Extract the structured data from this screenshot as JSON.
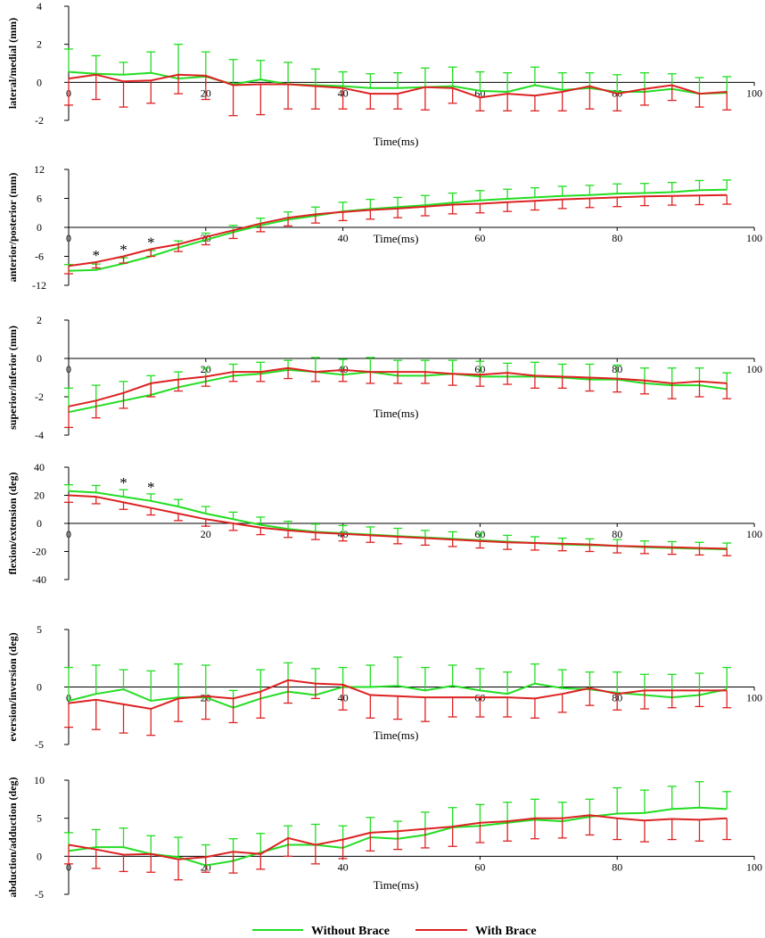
{
  "colors": {
    "without_brace": "#22dd22",
    "with_brace": "#dd2222",
    "axis": "#000000"
  },
  "legend": {
    "without": "Without Brace",
    "with": "With Brace"
  },
  "chart_data": [
    {
      "type": "line",
      "ylabel": "lateral/medial (mm)",
      "xlabel": "Time(ms)",
      "xlim": [
        0,
        100
      ],
      "ylim": [
        -2,
        4
      ],
      "xticks": [
        "0",
        "20",
        "40",
        "60",
        "80",
        "100"
      ],
      "yticks": [
        "4",
        "2",
        "0",
        "-2"
      ],
      "ytick_values": [
        4,
        2,
        0,
        -2
      ],
      "x": [
        0,
        4,
        8,
        12,
        16,
        20,
        24,
        28,
        32,
        36,
        40,
        44,
        48,
        52,
        56,
        60,
        64,
        68,
        72,
        76,
        80,
        84,
        88,
        92,
        96
      ],
      "series": [
        {
          "name": "Without Brace",
          "values": [
            0.55,
            0.45,
            0.4,
            0.5,
            0.2,
            0.3,
            -0.1,
            0.15,
            -0.1,
            -0.15,
            -0.2,
            -0.3,
            -0.3,
            -0.25,
            -0.2,
            -0.45,
            -0.5,
            -0.15,
            -0.4,
            -0.3,
            -0.5,
            -0.5,
            -0.35,
            -0.6,
            -0.55
          ],
          "err": [
            1.2,
            0.95,
            0.65,
            1.1,
            1.8,
            1.3,
            1.3,
            1.0,
            1.15,
            0.85,
            0.75,
            0.75,
            0.8,
            1.0,
            1.0,
            1.0,
            1.0,
            0.95,
            0.9,
            0.8,
            0.9,
            1.0,
            0.8,
            0.85,
            0.85
          ]
        },
        {
          "name": "With Brace",
          "values": [
            0.2,
            0.4,
            0.05,
            0.1,
            0.4,
            0.35,
            -0.15,
            -0.1,
            -0.1,
            -0.2,
            -0.3,
            -0.6,
            -0.6,
            -0.25,
            -0.3,
            -0.8,
            -0.6,
            -0.7,
            -0.5,
            -0.2,
            -0.6,
            -0.35,
            -0.15,
            -0.6,
            -0.5
          ],
          "err": [
            1.4,
            1.3,
            1.35,
            1.2,
            1.0,
            1.25,
            1.6,
            1.6,
            1.3,
            1.2,
            1.1,
            0.8,
            0.8,
            1.2,
            0.8,
            0.7,
            0.9,
            0.8,
            1.0,
            1.2,
            0.9,
            0.85,
            0.8,
            0.7,
            0.95
          ]
        }
      ],
      "stars_x": []
    },
    {
      "type": "line",
      "ylabel": "anterior/posterior (mm)",
      "xlabel": "Time(ms)",
      "xlim": [
        0,
        100
      ],
      "ylim": [
        -12,
        12
      ],
      "xticks": [
        "0",
        "20",
        "40",
        "60",
        "80",
        "100"
      ],
      "yticks": [
        "12",
        "6",
        "0",
        "-6",
        "-12"
      ],
      "ytick_values": [
        12,
        6,
        0,
        -6,
        -12
      ],
      "x": [
        0,
        4,
        8,
        12,
        16,
        20,
        24,
        28,
        32,
        36,
        40,
        44,
        48,
        52,
        56,
        60,
        64,
        68,
        72,
        76,
        80,
        84,
        88,
        92,
        96
      ],
      "series": [
        {
          "name": "Without Brace",
          "values": [
            -9,
            -8.8,
            -7.5,
            -6,
            -4.2,
            -2.6,
            -1,
            0.4,
            1.6,
            2.4,
            3.3,
            3.8,
            4.2,
            4.6,
            5.1,
            5.6,
            5.9,
            6.2,
            6.5,
            6.7,
            7,
            7.1,
            7.3,
            7.7,
            7.8
          ],
          "err": [
            1.3,
            1.2,
            1.2,
            1.2,
            1.4,
            1.4,
            1.4,
            1.5,
            1.6,
            1.8,
            1.9,
            2.0,
            2.0,
            2.0,
            2.0,
            2.0,
            2.0,
            2.0,
            2.0,
            2.0,
            2.0,
            2.0,
            2.0,
            2.0,
            2.0
          ]
        },
        {
          "name": "With Brace",
          "values": [
            -8,
            -7.2,
            -6,
            -4.5,
            -3.5,
            -2,
            -0.6,
            0.8,
            2,
            2.7,
            3.2,
            3.6,
            3.9,
            4.3,
            4.7,
            4.9,
            5.2,
            5.5,
            5.8,
            6,
            6.2,
            6.4,
            6.5,
            6.6,
            6.7
          ],
          "err": [
            1.6,
            1.2,
            1.4,
            1.5,
            1.5,
            1.6,
            1.7,
            1.7,
            1.7,
            1.8,
            1.8,
            1.9,
            1.9,
            1.9,
            1.9,
            1.9,
            1.9,
            1.9,
            1.9,
            1.9,
            1.9,
            1.9,
            1.9,
            1.9,
            1.9
          ]
        }
      ],
      "stars_x": [
        4,
        8,
        12
      ]
    },
    {
      "type": "line",
      "ylabel": "superior/inferior (mm)",
      "xlabel": "Time(ms)",
      "xlim": [
        0,
        100
      ],
      "ylim": [
        -4,
        2
      ],
      "xticks": [
        "0",
        "20",
        "40",
        "60",
        "80",
        "100"
      ],
      "yticks": [
        "2",
        "0",
        "-2",
        "-4"
      ],
      "ytick_values": [
        2,
        0,
        -2,
        -4
      ],
      "x": [
        0,
        4,
        8,
        12,
        16,
        20,
        24,
        28,
        32,
        36,
        40,
        44,
        48,
        52,
        56,
        60,
        64,
        68,
        72,
        76,
        80,
        84,
        88,
        92,
        96
      ],
      "series": [
        {
          "name": "Without Brace",
          "values": [
            -2.8,
            -2.5,
            -2.2,
            -1.9,
            -1.5,
            -1.2,
            -0.9,
            -0.8,
            -0.6,
            -0.7,
            -0.85,
            -0.7,
            -0.9,
            -0.9,
            -0.8,
            -0.95,
            -0.95,
            -0.95,
            -1.0,
            -1.1,
            -1.1,
            -1.3,
            -1.4,
            -1.4,
            -1.6
          ],
          "err": [
            1.25,
            1.1,
            1.0,
            1.0,
            0.8,
            0.7,
            0.6,
            0.6,
            0.5,
            0.75,
            0.8,
            0.75,
            0.8,
            0.8,
            0.7,
            0.8,
            0.7,
            0.75,
            0.7,
            0.8,
            0.75,
            0.8,
            0.9,
            0.9,
            0.85
          ]
        },
        {
          "name": "With Brace",
          "values": [
            -2.5,
            -2.2,
            -1.8,
            -1.3,
            -1.1,
            -0.95,
            -0.7,
            -0.7,
            -0.5,
            -0.7,
            -0.6,
            -0.7,
            -0.7,
            -0.7,
            -0.8,
            -0.85,
            -0.75,
            -0.9,
            -0.95,
            -1.0,
            -1.05,
            -1.15,
            -1.3,
            -1.2,
            -1.3
          ],
          "err": [
            1.1,
            0.9,
            0.8,
            0.7,
            0.6,
            0.5,
            0.5,
            0.5,
            0.55,
            0.5,
            0.6,
            0.6,
            0.6,
            0.6,
            0.6,
            0.6,
            0.6,
            0.65,
            0.6,
            0.7,
            0.7,
            0.7,
            0.8,
            0.8,
            0.8
          ]
        }
      ],
      "stars_x": []
    },
    {
      "type": "line",
      "ylabel": "flexion/extension (deg)",
      "xlabel": "",
      "xlim": [
        0,
        100
      ],
      "ylim": [
        -40,
        40
      ],
      "xticks": [
        "0",
        "20",
        "40",
        "60",
        "80",
        "100"
      ],
      "yticks": [
        "40",
        "20",
        "0",
        "-20",
        "-40"
      ],
      "ytick_values": [
        40,
        20,
        0,
        -20,
        -40
      ],
      "x": [
        0,
        4,
        8,
        12,
        16,
        20,
        24,
        28,
        32,
        36,
        40,
        44,
        48,
        52,
        56,
        60,
        64,
        68,
        72,
        76,
        80,
        84,
        88,
        92,
        96
      ],
      "series": [
        {
          "name": "Without Brace",
          "values": [
            23,
            22,
            19,
            16,
            12,
            7,
            3,
            -1,
            -4,
            -6,
            -7,
            -8,
            -9,
            -10,
            -11,
            -12,
            -13,
            -14,
            -15,
            -15.5,
            -16,
            -17,
            -17.5,
            -18,
            -18.5
          ],
          "err": [
            4.5,
            5,
            5,
            5,
            5,
            5,
            5,
            5.5,
            5.5,
            5.5,
            5.5,
            5.5,
            5.5,
            5,
            5,
            5,
            4.5,
            4.5,
            4.5,
            4.5,
            4.5,
            4.5,
            4.5,
            4.5,
            4.5
          ]
        },
        {
          "name": "With Brace",
          "values": [
            20,
            19,
            15,
            11,
            7,
            3,
            0,
            -3,
            -5,
            -6.5,
            -7.5,
            -8.5,
            -9.5,
            -10.5,
            -11.5,
            -12.5,
            -13.5,
            -14,
            -14.5,
            -15,
            -16,
            -16.5,
            -17,
            -17.5,
            -18
          ],
          "err": [
            5,
            5,
            5,
            5,
            5,
            5,
            5,
            5,
            5,
            5,
            5,
            5,
            5,
            5,
            5,
            5,
            5,
            5,
            5,
            5,
            5,
            5,
            5,
            5,
            5
          ]
        }
      ],
      "stars_x": [
        8,
        12
      ]
    },
    {
      "type": "line",
      "ylabel": "eversion/inversion (deg)",
      "xlabel": "Time(ms)",
      "xlim": [
        0,
        100
      ],
      "ylim": [
        -5,
        5
      ],
      "xticks": [
        "0",
        "20",
        "40",
        "60",
        "80",
        "100"
      ],
      "yticks": [
        "5",
        "0",
        "-5"
      ],
      "ytick_values": [
        5,
        0,
        -5
      ],
      "x": [
        0,
        4,
        8,
        12,
        16,
        20,
        24,
        28,
        32,
        36,
        40,
        44,
        48,
        52,
        56,
        60,
        64,
        68,
        72,
        76,
        80,
        84,
        88,
        92,
        96
      ],
      "series": [
        {
          "name": "Without Brace",
          "values": [
            -1.2,
            -0.6,
            -0.2,
            -1.2,
            -0.9,
            -0.9,
            -1.8,
            -1,
            -0.4,
            -0.7,
            0,
            0,
            0.1,
            -0.3,
            0.1,
            -0.3,
            -0.6,
            0.3,
            -0.1,
            -0.2,
            -0.5,
            -0.7,
            -0.9,
            -0.7,
            -0.2
          ],
          "err": [
            2.9,
            2.5,
            1.7,
            2.6,
            2.9,
            2.8,
            1.5,
            2.5,
            2.5,
            2.3,
            1.7,
            1.9,
            2.5,
            2.0,
            1.8,
            1.9,
            1.9,
            1.7,
            1.6,
            1.5,
            1.8,
            1.8,
            2.0,
            1.9,
            1.9
          ]
        },
        {
          "name": "With Brace",
          "values": [
            -1.4,
            -1.1,
            -1.5,
            -1.9,
            -1,
            -0.8,
            -1,
            -0.4,
            0.6,
            0.3,
            0.2,
            -0.7,
            -0.8,
            -0.9,
            -0.9,
            -0.9,
            -0.9,
            -1,
            -0.6,
            -0.1,
            -0.6,
            -0.3,
            -0.3,
            -0.3,
            -0.3
          ],
          "err": [
            2.1,
            2.6,
            2.5,
            2.3,
            2.0,
            2.0,
            2.1,
            2.3,
            2.0,
            1.3,
            2.2,
            2.0,
            2.0,
            2.1,
            1.7,
            1.7,
            1.7,
            1.7,
            1.6,
            1.5,
            1.4,
            1.6,
            1.5,
            1.4,
            1.5
          ]
        }
      ],
      "stars_x": []
    },
    {
      "type": "line",
      "ylabel": "abduction/adduction (deg)",
      "xlabel": "Time(ms)",
      "xlim": [
        0,
        100
      ],
      "ylim": [
        -5,
        10
      ],
      "xticks": [
        "0",
        "20",
        "40",
        "60",
        "80",
        "100"
      ],
      "yticks": [
        "10",
        "5",
        "0",
        "-5"
      ],
      "ytick_values": [
        10,
        5,
        0,
        -5
      ],
      "x": [
        0,
        4,
        8,
        12,
        16,
        20,
        24,
        28,
        32,
        36,
        40,
        44,
        48,
        52,
        56,
        60,
        64,
        68,
        72,
        76,
        80,
        84,
        88,
        92,
        96
      ],
      "series": [
        {
          "name": "Without Brace",
          "values": [
            0.7,
            1.2,
            1.2,
            0.3,
            -0.1,
            -1.2,
            -0.6,
            0.5,
            1.5,
            1.5,
            1.1,
            2.5,
            2.3,
            2.8,
            3.8,
            4,
            4.4,
            4.8,
            4.6,
            5.2,
            5.6,
            5.7,
            6.2,
            6.4,
            6.2
          ],
          "err": [
            2.4,
            2.3,
            2.5,
            2.4,
            2.6,
            2.7,
            2.9,
            2.5,
            2.5,
            2.7,
            2.9,
            2.6,
            2.3,
            3.0,
            2.6,
            2.8,
            2.7,
            2.7,
            2.5,
            2.3,
            3.4,
            3.0,
            3.0,
            3.4,
            2.3
          ]
        },
        {
          "name": "With Brace",
          "values": [
            1.5,
            0.9,
            0.2,
            0.3,
            -0.4,
            -0.1,
            0.6,
            0.3,
            2.4,
            1.5,
            2.2,
            3.1,
            3.3,
            3.6,
            3.9,
            4.4,
            4.6,
            5,
            5,
            5.4,
            5,
            4.7,
            4.9,
            4.8,
            5
          ],
          "err": [
            2.5,
            2.5,
            2.2,
            2.4,
            2.7,
            2.0,
            2.8,
            2.0,
            2.4,
            2.5,
            2.5,
            2.4,
            2.4,
            2.5,
            2.6,
            2.6,
            2.6,
            2.7,
            2.6,
            2.6,
            2.8,
            2.8,
            2.7,
            2.8,
            2.8
          ]
        }
      ],
      "stars_x": []
    }
  ]
}
